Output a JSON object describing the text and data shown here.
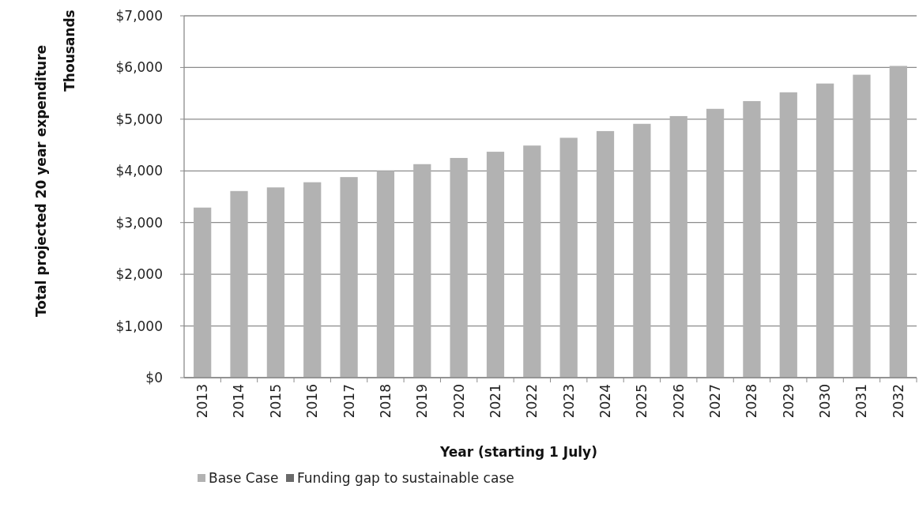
{
  "chart_data": {
    "type": "bar",
    "xlabel": "Year (starting 1 July)",
    "ylabel": "Total projected 20 year expenditure",
    "annotations": [
      "Thousands"
    ],
    "categories": [
      "2013",
      "2014",
      "2015",
      "2016",
      "2017",
      "2018",
      "2019",
      "2020",
      "2021",
      "2022",
      "2023",
      "2024",
      "2025",
      "2026",
      "2027",
      "2028",
      "2029",
      "2030",
      "2031",
      "2032"
    ],
    "series": [
      {
        "name": "Base Case",
        "color": "#b2b2b2",
        "values": [
          3290,
          3610,
          3680,
          3780,
          3880,
          4000,
          4130,
          4250,
          4370,
          4490,
          4640,
          4770,
          4910,
          5060,
          5200,
          5350,
          5520,
          5690,
          5860,
          6030
        ]
      },
      {
        "name": "Funding gap to sustainable case",
        "color": "#6a6a6a",
        "values": [
          null,
          null,
          null,
          null,
          null,
          null,
          null,
          null,
          null,
          null,
          null,
          null,
          null,
          null,
          null,
          null,
          null,
          null,
          null,
          null
        ]
      }
    ],
    "ylim": [
      0,
      7000
    ],
    "yticks": [
      {
        "value": 0,
        "label": "$0"
      },
      {
        "value": 1000,
        "label": "$1,000"
      },
      {
        "value": 2000,
        "label": "$2,000"
      },
      {
        "value": 3000,
        "label": "$3,000"
      },
      {
        "value": 4000,
        "label": "$4,000"
      },
      {
        "value": 5000,
        "label": "$5,000"
      },
      {
        "value": 6000,
        "label": "$6,000"
      },
      {
        "value": 7000,
        "label": "$7,000"
      }
    ],
    "grid": "y",
    "legend": "bottom"
  }
}
